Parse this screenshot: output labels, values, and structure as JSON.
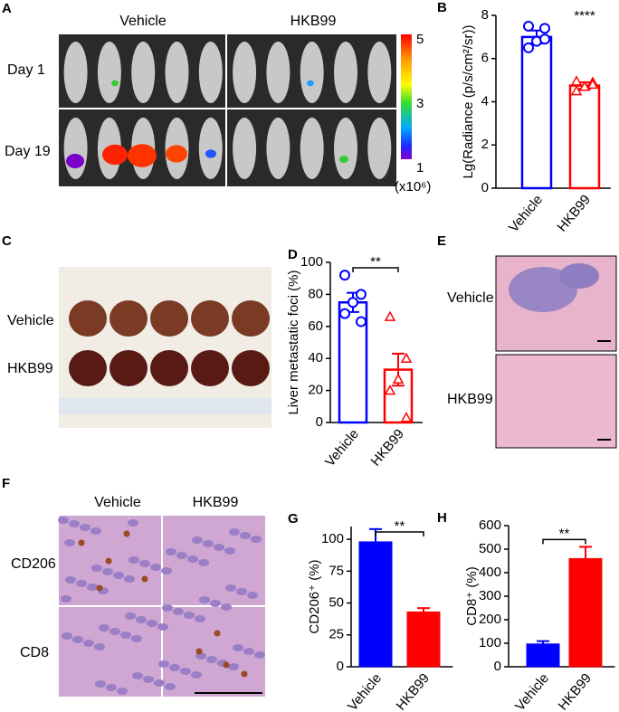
{
  "panels": {
    "A": {
      "label": "A",
      "groups": [
        "Vehicle",
        "HKB99"
      ],
      "rows": [
        "Day 1",
        "Day 19"
      ],
      "colorbar_ticks": [
        "5",
        "3",
        "1"
      ],
      "colorbar_unit": "(x10⁶)"
    },
    "C": {
      "label": "C",
      "rows": [
        "Vehicle",
        "HKB99"
      ]
    },
    "E": {
      "label": "E",
      "rows": [
        "Vehicle",
        "HKB99"
      ]
    },
    "F": {
      "label": "F",
      "columns": [
        "Vehicle",
        "HKB99"
      ],
      "rows": [
        "CD206",
        "CD8"
      ]
    }
  },
  "chart_data": [
    {
      "type": "bar",
      "label": "B",
      "ylabel": "Lg(Radiance (p/s/cm²/sr))",
      "categories": [
        "Vehicle",
        "HKB99"
      ],
      "values": [
        7.0,
        4.75
      ],
      "errors": [
        0.3,
        0.15
      ],
      "points": [
        [
          7.5,
          7.4,
          6.8,
          6.5,
          6.9
        ],
        [
          4.95,
          4.9,
          4.7,
          4.5,
          4.8
        ]
      ],
      "colors": [
        "#0000ff",
        "#ff0000"
      ],
      "bar_style": "outline",
      "markers": [
        "circle",
        "triangle"
      ],
      "ylim": [
        0,
        8
      ],
      "yticks": [
        0,
        2,
        4,
        6,
        8
      ],
      "annotation": "****",
      "annotation_bracket": false
    },
    {
      "type": "bar",
      "label": "D",
      "ylabel": "Liver metastatic foci (%)",
      "categories": [
        "Vehicle",
        "HKB99"
      ],
      "values": [
        75,
        33
      ],
      "errors": [
        6,
        10
      ],
      "points": [
        [
          92,
          80,
          75,
          68,
          63
        ],
        [
          66,
          40,
          27,
          20,
          3
        ]
      ],
      "colors": [
        "#0000ff",
        "#ff0000"
      ],
      "bar_style": "outline",
      "markers": [
        "circle",
        "triangle"
      ],
      "ylim": [
        0,
        100
      ],
      "yticks": [
        0,
        20,
        40,
        60,
        80,
        100
      ],
      "annotation": "**",
      "annotation_bracket": true
    },
    {
      "type": "bar",
      "label": "G",
      "ylabel": "CD206⁺ (%)",
      "categories": [
        "Vehicle",
        "HKB99"
      ],
      "values": [
        98,
        43
      ],
      "errors": [
        10,
        3
      ],
      "colors": [
        "#0000ff",
        "#ff0000"
      ],
      "bar_style": "filled",
      "ylim": [
        0,
        110
      ],
      "yticks": [
        0,
        25,
        50,
        75,
        100
      ],
      "annotation": "**",
      "annotation_bracket": true
    },
    {
      "type": "bar",
      "label": "H",
      "ylabel": "CD8⁺ (%)",
      "categories": [
        "Vehicle",
        "HKB99"
      ],
      "values": [
        97,
        460
      ],
      "errors": [
        12,
        50
      ],
      "colors": [
        "#0000ff",
        "#ff0000"
      ],
      "bar_style": "filled",
      "ylim": [
        0,
        600
      ],
      "yticks": [
        0,
        100,
        200,
        300,
        400,
        500,
        600
      ],
      "annotation": "**",
      "annotation_bracket": true
    }
  ]
}
